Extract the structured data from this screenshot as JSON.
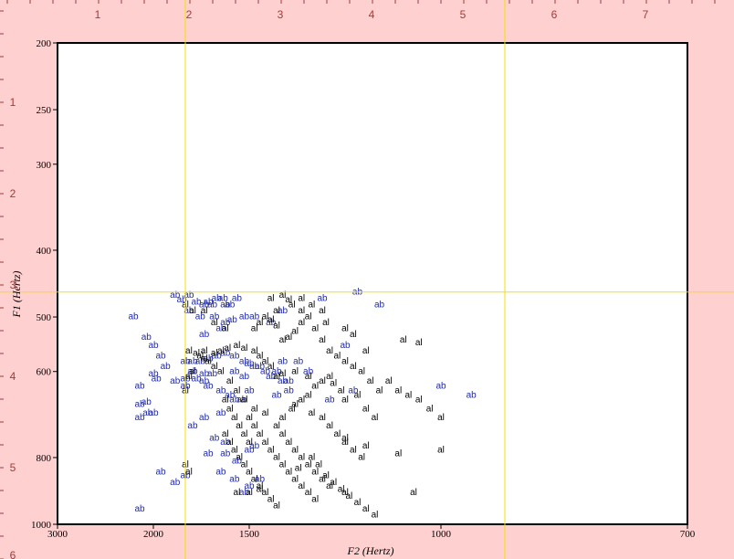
{
  "ruler": {
    "top_labels": [
      "1",
      "2",
      "3",
      "4",
      "5",
      "6",
      "7"
    ],
    "left_labels": [
      "1",
      "2",
      "3",
      "4",
      "5",
      "6"
    ]
  },
  "colors": {
    "background": "#ffd0d0",
    "plot_bg": "#ffffff",
    "crosshair": "#f2e200",
    "ruler_text": "#a23a3a",
    "ab": "#1f2aa8",
    "al": "#000000"
  },
  "chart_data": {
    "type": "scatter",
    "title": "",
    "xlabel": "F2 (Hertz)",
    "ylabel": "F1 (Hertz)",
    "x_reversed": true,
    "y_reversed": true,
    "y_scale": "log",
    "xlim": [
      3000,
      700
    ],
    "ylim": [
      200,
      1000
    ],
    "x_ticks": [
      3000,
      2000,
      1500,
      1000,
      700
    ],
    "y_ticks": [
      200,
      250,
      300,
      400,
      500,
      600,
      800,
      1000
    ],
    "grid": false,
    "legend": "none",
    "crosshair": {
      "f2": [
        1800,
        900
      ],
      "f1": 460
    },
    "series": [
      {
        "name": "ab",
        "points": [
          [
            2150,
            500
          ],
          [
            2050,
            535
          ],
          [
            2000,
            550
          ],
          [
            1950,
            570
          ],
          [
            1920,
            590
          ],
          [
            2000,
            605
          ],
          [
            1980,
            615
          ],
          [
            2100,
            630
          ],
          [
            2100,
            670
          ],
          [
            2050,
            665
          ],
          [
            2100,
            700
          ],
          [
            2040,
            690
          ],
          [
            2000,
            690
          ],
          [
            1860,
            465
          ],
          [
            1820,
            472
          ],
          [
            1780,
            465
          ],
          [
            1740,
            476
          ],
          [
            1700,
            480
          ],
          [
            1680,
            476
          ],
          [
            1660,
            480
          ],
          [
            1640,
            470
          ],
          [
            1610,
            470
          ],
          [
            1600,
            480
          ],
          [
            1780,
            490
          ],
          [
            1720,
            500
          ],
          [
            1650,
            500
          ],
          [
            1600,
            510
          ],
          [
            1570,
            505
          ],
          [
            1620,
            520
          ],
          [
            1700,
            530
          ],
          [
            1800,
            580
          ],
          [
            1760,
            580
          ],
          [
            1720,
            580
          ],
          [
            1680,
            575
          ],
          [
            1640,
            570
          ],
          [
            1600,
            565
          ],
          [
            1560,
            570
          ],
          [
            1520,
            580
          ],
          [
            1500,
            585
          ],
          [
            1480,
            590
          ],
          [
            1760,
            600
          ],
          [
            1700,
            605
          ],
          [
            1660,
            605
          ],
          [
            1800,
            615
          ],
          [
            1740,
            615
          ],
          [
            1700,
            620
          ],
          [
            1680,
            630
          ],
          [
            1620,
            640
          ],
          [
            1580,
            650
          ],
          [
            1560,
            660
          ],
          [
            1620,
            690
          ],
          [
            1700,
            700
          ],
          [
            1760,
            720
          ],
          [
            1650,
            750
          ],
          [
            1600,
            760
          ],
          [
            1680,
            790
          ],
          [
            1600,
            790
          ],
          [
            1550,
            810
          ],
          [
            1620,
            840
          ],
          [
            1560,
            860
          ],
          [
            1500,
            780
          ],
          [
            1480,
            770
          ],
          [
            1460,
            590
          ],
          [
            1440,
            600
          ],
          [
            1420,
            610
          ],
          [
            1400,
            600
          ],
          [
            1380,
            620
          ],
          [
            1360,
            640
          ],
          [
            1480,
            500
          ],
          [
            1420,
            510
          ],
          [
            1380,
            490
          ],
          [
            1580,
            480
          ],
          [
            1550,
            470
          ],
          [
            1520,
            500
          ],
          [
            1560,
            600
          ],
          [
            1520,
            610
          ],
          [
            1500,
            640
          ],
          [
            1530,
            660
          ],
          [
            1260,
            470
          ],
          [
            1170,
            460
          ],
          [
            1120,
            480
          ],
          [
            1200,
            550
          ],
          [
            1950,
            840
          ],
          [
            1800,
            850
          ],
          [
            1860,
            870
          ],
          [
            1520,
            900
          ],
          [
            1500,
            880
          ],
          [
            1460,
            860
          ],
          [
            2100,
            950
          ],
          [
            950,
            650
          ],
          [
            1000,
            630
          ],
          [
            1380,
            580
          ],
          [
            1330,
            580
          ],
          [
            1300,
            600
          ],
          [
            1360,
            620
          ],
          [
            1400,
            650
          ],
          [
            1240,
            660
          ],
          [
            1180,
            640
          ],
          [
            1860,
            620
          ],
          [
            1800,
            630
          ]
        ]
      },
      {
        "name": "al",
        "points": [
          [
            1800,
            480
          ],
          [
            1760,
            490
          ],
          [
            1700,
            490
          ],
          [
            1650,
            510
          ],
          [
            1600,
            520
          ],
          [
            1780,
            560
          ],
          [
            1700,
            560
          ],
          [
            1650,
            565
          ],
          [
            1620,
            560
          ],
          [
            1590,
            555
          ],
          [
            1550,
            550
          ],
          [
            1520,
            555
          ],
          [
            1480,
            520
          ],
          [
            1460,
            510
          ],
          [
            1440,
            500
          ],
          [
            1420,
            505
          ],
          [
            1400,
            515
          ],
          [
            1380,
            540
          ],
          [
            1360,
            535
          ],
          [
            1340,
            525
          ],
          [
            1320,
            510
          ],
          [
            1300,
            500
          ],
          [
            1280,
            520
          ],
          [
            1260,
            540
          ],
          [
            1240,
            560
          ],
          [
            1220,
            570
          ],
          [
            1200,
            580
          ],
          [
            1180,
            590
          ],
          [
            1160,
            600
          ],
          [
            1140,
            620
          ],
          [
            1120,
            640
          ],
          [
            1100,
            620
          ],
          [
            1080,
            640
          ],
          [
            1060,
            650
          ],
          [
            1040,
            660
          ],
          [
            1020,
            680
          ],
          [
            1000,
            700
          ],
          [
            1070,
            540
          ],
          [
            1040,
            545
          ],
          [
            1320,
            470
          ],
          [
            1290,
            480
          ],
          [
            1380,
            465
          ],
          [
            1360,
            472
          ],
          [
            1350,
            480
          ],
          [
            1420,
            470
          ],
          [
            1400,
            490
          ],
          [
            1320,
            490
          ],
          [
            1260,
            490
          ],
          [
            1250,
            510
          ],
          [
            1200,
            520
          ],
          [
            1180,
            530
          ],
          [
            1150,
            560
          ],
          [
            1480,
            560
          ],
          [
            1460,
            570
          ],
          [
            1440,
            580
          ],
          [
            1420,
            590
          ],
          [
            1400,
            610
          ],
          [
            1380,
            605
          ],
          [
            1340,
            600
          ],
          [
            1300,
            610
          ],
          [
            1280,
            630
          ],
          [
            1260,
            620
          ],
          [
            1240,
            610
          ],
          [
            1230,
            625
          ],
          [
            1210,
            640
          ],
          [
            1200,
            660
          ],
          [
            1170,
            650
          ],
          [
            1150,
            680
          ],
          [
            1130,
            700
          ],
          [
            1300,
            650
          ],
          [
            1320,
            660
          ],
          [
            1340,
            670
          ],
          [
            1290,
            690
          ],
          [
            1260,
            700
          ],
          [
            1240,
            720
          ],
          [
            1220,
            740
          ],
          [
            1200,
            760
          ],
          [
            1180,
            780
          ],
          [
            1160,
            800
          ],
          [
            1400,
            720
          ],
          [
            1380,
            740
          ],
          [
            1360,
            760
          ],
          [
            1340,
            780
          ],
          [
            1320,
            800
          ],
          [
            1300,
            820
          ],
          [
            1280,
            840
          ],
          [
            1260,
            860
          ],
          [
            1240,
            880
          ],
          [
            1500,
            700
          ],
          [
            1480,
            720
          ],
          [
            1460,
            740
          ],
          [
            1440,
            760
          ],
          [
            1420,
            780
          ],
          [
            1400,
            800
          ],
          [
            1380,
            820
          ],
          [
            1360,
            840
          ],
          [
            1340,
            860
          ],
          [
            1320,
            880
          ],
          [
            1300,
            900
          ],
          [
            1280,
            920
          ],
          [
            1600,
            660
          ],
          [
            1580,
            680
          ],
          [
            1560,
            700
          ],
          [
            1540,
            720
          ],
          [
            1520,
            740
          ],
          [
            1500,
            760
          ],
          [
            1600,
            740
          ],
          [
            1580,
            760
          ],
          [
            1560,
            780
          ],
          [
            1540,
            800
          ],
          [
            1520,
            820
          ],
          [
            1500,
            840
          ],
          [
            1480,
            860
          ],
          [
            1460,
            880
          ],
          [
            1440,
            900
          ],
          [
            1420,
            920
          ],
          [
            1400,
            940
          ],
          [
            1800,
            820
          ],
          [
            1780,
            840
          ],
          [
            1550,
            900
          ],
          [
            1500,
            900
          ],
          [
            1460,
            890
          ],
          [
            1200,
            900
          ],
          [
            1050,
            900
          ],
          [
            1000,
            780
          ],
          [
            1080,
            790
          ],
          [
            1150,
            770
          ],
          [
            1200,
            750
          ],
          [
            1350,
            680
          ],
          [
            1380,
            700
          ],
          [
            1440,
            690
          ],
          [
            1480,
            680
          ],
          [
            1520,
            660
          ],
          [
            1550,
            640
          ],
          [
            1580,
            620
          ],
          [
            1620,
            600
          ],
          [
            1650,
            590
          ],
          [
            1680,
            580
          ],
          [
            1700,
            575
          ],
          [
            1720,
            570
          ],
          [
            1740,
            565
          ],
          [
            1760,
            600
          ],
          [
            1780,
            610
          ],
          [
            1800,
            640
          ],
          [
            1330,
            830
          ],
          [
            1290,
            800
          ],
          [
            1270,
            820
          ],
          [
            1250,
            850
          ],
          [
            1230,
            870
          ],
          [
            1210,
            890
          ],
          [
            1190,
            910
          ],
          [
            1170,
            930
          ],
          [
            1150,
            950
          ],
          [
            1130,
            970
          ]
        ]
      }
    ]
  }
}
